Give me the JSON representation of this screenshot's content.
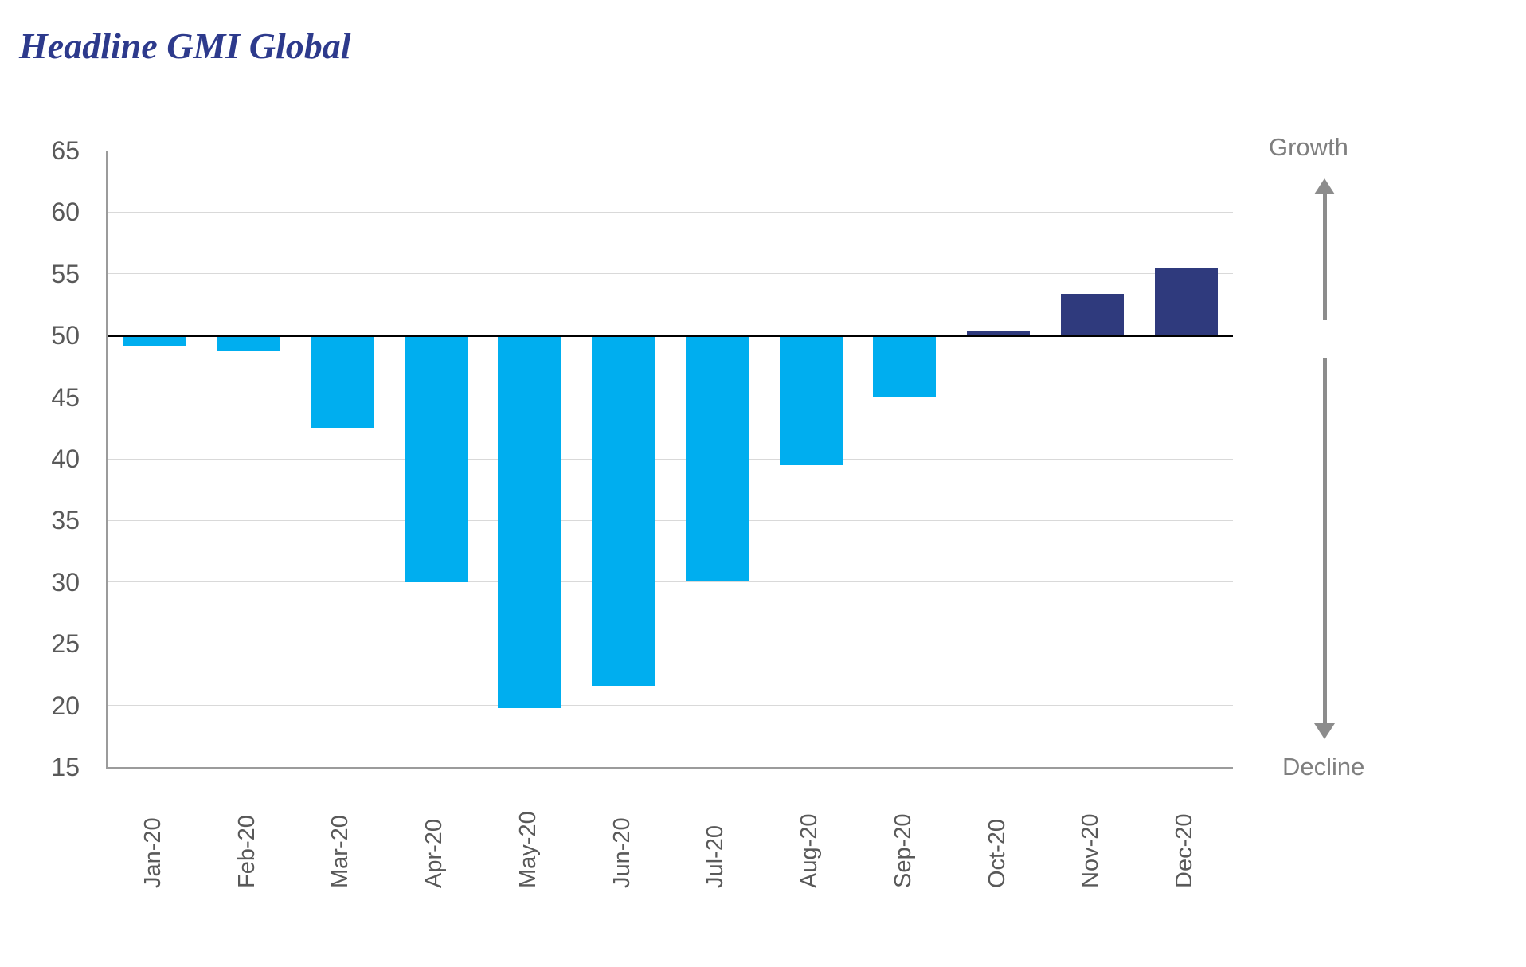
{
  "page": {
    "title": "Headline GMI Global"
  },
  "colors": {
    "title": "#2D3A8C",
    "bar_below_baseline": "#00AEEF",
    "bar_above_baseline": "#2F3A7D",
    "axis_tick_labels": "#595959",
    "annotation_text": "#7F7F7F",
    "gridline": "#D9D9D9",
    "axis_line": "#9B9B9B",
    "baseline_line": "#000000",
    "arrow": "#8C8C8C"
  },
  "annotations": {
    "growth_label": "Growth",
    "decline_label": "Decline"
  },
  "chart_data": {
    "type": "bar",
    "title": "Headline GMI Global",
    "categories": [
      "Jan-20",
      "Feb-20",
      "Mar-20",
      "Apr-20",
      "May-20",
      "Jun-20",
      "Jul-20",
      "Aug-20",
      "Sep-20",
      "Oct-20",
      "Nov-20",
      "Dec-20"
    ],
    "values": [
      49.1,
      48.7,
      42.5,
      30.0,
      19.8,
      21.6,
      30.1,
      39.5,
      45.0,
      50.4,
      53.4,
      55.5
    ],
    "baseline": 50,
    "ylim": [
      15,
      65
    ],
    "yticks": [
      65,
      60,
      55,
      50,
      45,
      40,
      35,
      30,
      25,
      20,
      15
    ],
    "xlabel": "",
    "ylabel": "",
    "grid": true,
    "legend": "none",
    "color_rule": "bars below baseline are light blue, bars at/above baseline are dark navy"
  }
}
